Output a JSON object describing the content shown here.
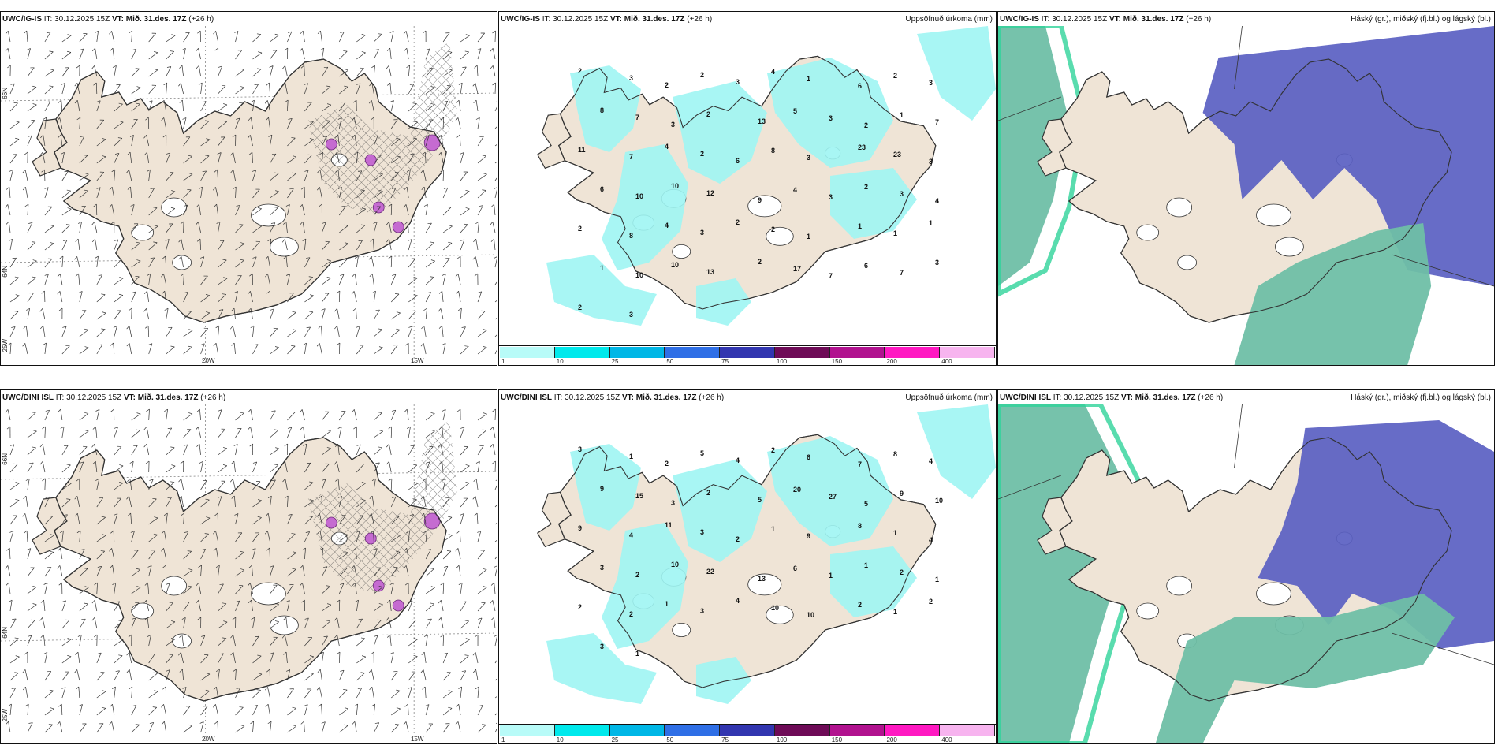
{
  "colors": {
    "land": "#efe4d6",
    "precip": "#9ff5f3",
    "cloud_high": "#5a5fc2",
    "cloud_low": "#6fbfa7",
    "cloud_mid": "#2fd39a",
    "coast": "#333333"
  },
  "rows": [
    {
      "model": "UWC/IG-IS",
      "panels": [
        {
          "id": "wind",
          "model": "UWC/IG-IS",
          "it": "30.12.2025 15Z",
          "vt": "Mið. 31.des. 17Z",
          "lead": "(+26 h)",
          "right": ""
        },
        {
          "id": "precip",
          "model": "UWC/IG-IS",
          "it": "30.12.2025 15Z",
          "vt": "Mið. 31.des. 17Z",
          "lead": "(+26 h)",
          "right": "Uppsöfnuð úrkoma (mm)"
        },
        {
          "id": "cloud",
          "model": "UWC/IG-IS",
          "it": "30.12.2025 15Z",
          "vt": "Mið. 31.des. 17Z",
          "lead": "(+26 h)",
          "right": "Háský (gr.), miðský (fj.bl.) og lágský (bl.)"
        }
      ]
    },
    {
      "model": "UWC/DINI ISL",
      "panels": [
        {
          "id": "wind",
          "model": "UWC/DINI ISL",
          "it": "30.12.2025 15Z",
          "vt": "Mið. 31.des. 17Z",
          "lead": "(+26 h)",
          "right": ""
        },
        {
          "id": "precip",
          "model": "UWC/DINI ISL",
          "it": "30.12.2025 15Z",
          "vt": "Mið. 31.des. 17Z",
          "lead": "(+26 h)",
          "right": "Uppsöfnuð úrkoma (mm)"
        },
        {
          "id": "cloud",
          "model": "UWC/DINI ISL",
          "it": "30.12.2025 15Z",
          "vt": "Mið. 31.des. 17Z",
          "lead": "(+26 h)",
          "right": "Háský (gr.), miðský (fj.bl.) og lágský (bl.)"
        }
      ]
    }
  ],
  "labels": {
    "it_prefix": "IT:",
    "vt_prefix": "VT:",
    "lat_66": "66N",
    "lat_64": "64N",
    "lon_25": "25W",
    "lon_20": "20W",
    "lon_15": "15W"
  },
  "precip_scale": {
    "ticks": [
      "1",
      "10",
      "25",
      "50",
      "75",
      "100",
      "150",
      "200",
      "400"
    ],
    "colors": [
      "#b8fbf8",
      "#00e9ec",
      "#00b7e6",
      "#2f6fe6",
      "#3236b0",
      "#6e0b57",
      "#b1128f",
      "#ff19c2",
      "#f7b4ef"
    ]
  },
  "precip_values_top": [
    "2",
    "3",
    "2",
    "2",
    "3",
    "4",
    "1",
    "6",
    "2",
    "3",
    "8",
    "7",
    "3",
    "2",
    "13",
    "5",
    "3",
    "2",
    "1",
    "7",
    "11",
    "7",
    "4",
    "2",
    "6",
    "8",
    "3",
    "23",
    "23",
    "3",
    "6",
    "10",
    "10",
    "12",
    "9",
    "4",
    "3",
    "2",
    "3",
    "4",
    "2",
    "8",
    "4",
    "3",
    "2",
    "2",
    "1",
    "1",
    "1",
    "1",
    "1",
    "10",
    "10",
    "13",
    "2",
    "17",
    "7",
    "6",
    "7",
    "3",
    "2",
    "3"
  ],
  "precip_values_bottom": [
    "3",
    "1",
    "2",
    "5",
    "4",
    "2",
    "6",
    "7",
    "8",
    "4",
    "9",
    "15",
    "3",
    "2",
    "5",
    "20",
    "27",
    "5",
    "9",
    "10",
    "9",
    "4",
    "11",
    "3",
    "2",
    "1",
    "9",
    "8",
    "1",
    "4",
    "3",
    "2",
    "10",
    "22",
    "13",
    "6",
    "1",
    "1",
    "2",
    "1",
    "2",
    "2",
    "1",
    "3",
    "4",
    "10",
    "10",
    "2",
    "1",
    "2",
    "3",
    "1"
  ]
}
